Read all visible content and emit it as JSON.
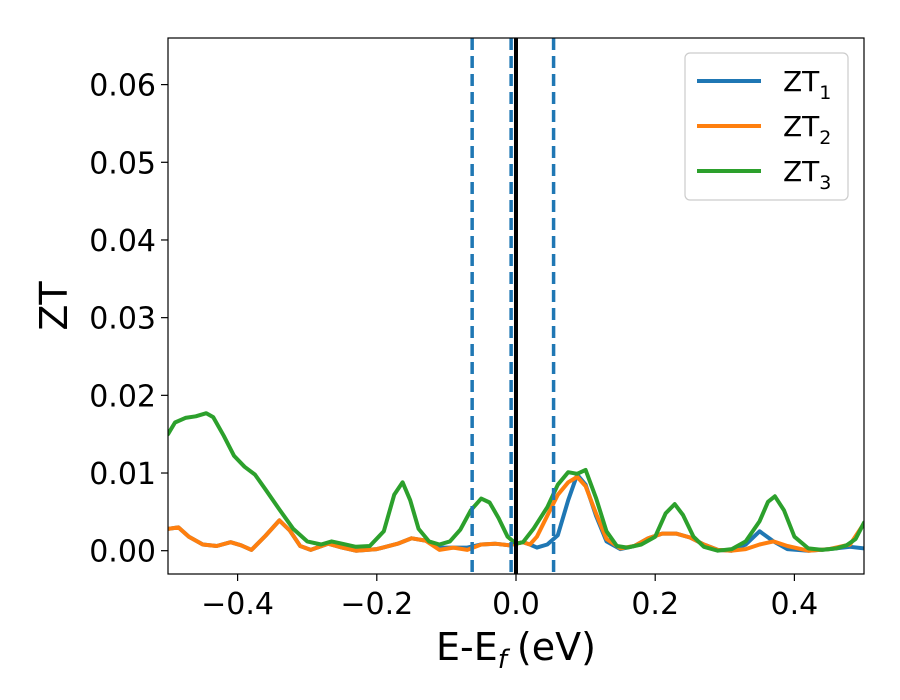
{
  "chart_data": {
    "type": "line",
    "xlabel": "E-E",
    "xlabel_sub": "f",
    "xlabel_unit": "(eV)",
    "ylabel": "ZT",
    "xlim": [
      -0.5,
      0.5
    ],
    "ylim": [
      -0.003,
      0.066
    ],
    "x_ticks": [
      -0.4,
      -0.2,
      0.0,
      0.2,
      0.4
    ],
    "x_tick_labels": [
      "−0.4",
      "−0.2",
      "0.0",
      "0.2",
      "0.4"
    ],
    "y_ticks": [
      0.0,
      0.01,
      0.02,
      0.03,
      0.04,
      0.05,
      0.06
    ],
    "y_tick_labels": [
      "0.00",
      "0.01",
      "0.02",
      "0.03",
      "0.04",
      "0.05",
      "0.06"
    ],
    "grid": false,
    "legend_position": "top-right",
    "vlines": [
      {
        "x": -0.063,
        "style": "dashed",
        "color": "#1f77b4"
      },
      {
        "x": -0.007,
        "style": "dashed",
        "color": "#1f77b4"
      },
      {
        "x": 0.0,
        "style": "solid",
        "color": "#000000"
      },
      {
        "x": 0.054,
        "style": "dashed",
        "color": "#1f77b4"
      }
    ],
    "series": [
      {
        "name": "ZT",
        "subscript": "1",
        "color": "#1f77b4",
        "points": [
          [
            -0.5,
            0.0028
          ],
          [
            -0.485,
            0.003
          ],
          [
            -0.47,
            0.0018
          ],
          [
            -0.45,
            0.0008
          ],
          [
            -0.43,
            0.0006
          ],
          [
            -0.41,
            0.0011
          ],
          [
            -0.395,
            0.0007
          ],
          [
            -0.38,
            0.0001
          ],
          [
            -0.36,
            0.0019
          ],
          [
            -0.34,
            0.0039
          ],
          [
            -0.325,
            0.0026
          ],
          [
            -0.31,
            0.0006
          ],
          [
            -0.295,
            0.0001
          ],
          [
            -0.27,
            0.0009
          ],
          [
            -0.25,
            0.0004
          ],
          [
            -0.23,
            0.0
          ],
          [
            -0.2,
            0.0002
          ],
          [
            -0.17,
            0.0009
          ],
          [
            -0.15,
            0.0016
          ],
          [
            -0.13,
            0.0013
          ],
          [
            -0.11,
            0.0004
          ],
          [
            -0.09,
            0.0004
          ],
          [
            -0.07,
            0.0004
          ],
          [
            -0.05,
            0.0008
          ],
          [
            -0.03,
            0.0009
          ],
          [
            -0.01,
            0.0007
          ],
          [
            0.0,
            0.0009
          ],
          [
            0.01,
            0.0011
          ],
          [
            0.02,
            0.0008
          ],
          [
            0.03,
            0.0004
          ],
          [
            0.045,
            0.0008
          ],
          [
            0.06,
            0.002
          ],
          [
            0.075,
            0.0065
          ],
          [
            0.088,
            0.0098
          ],
          [
            0.1,
            0.0085
          ],
          [
            0.115,
            0.0045
          ],
          [
            0.13,
            0.0012
          ],
          [
            0.15,
            0.0002
          ],
          [
            0.17,
            0.0006
          ],
          [
            0.19,
            0.0016
          ],
          [
            0.21,
            0.0022
          ],
          [
            0.23,
            0.0022
          ],
          [
            0.25,
            0.0017
          ],
          [
            0.27,
            0.0008
          ],
          [
            0.29,
            0.0001
          ],
          [
            0.31,
            0.0
          ],
          [
            0.33,
            0.0008
          ],
          [
            0.35,
            0.0025
          ],
          [
            0.37,
            0.0012
          ],
          [
            0.39,
            0.0002
          ],
          [
            0.42,
            0.0
          ],
          [
            0.45,
            0.0002
          ],
          [
            0.48,
            0.0005
          ],
          [
            0.5,
            0.0003
          ]
        ]
      },
      {
        "name": "ZT",
        "subscript": "2",
        "color": "#ff7f0e",
        "points": [
          [
            -0.5,
            0.0028
          ],
          [
            -0.485,
            0.003
          ],
          [
            -0.47,
            0.0018
          ],
          [
            -0.45,
            0.0008
          ],
          [
            -0.43,
            0.0006
          ],
          [
            -0.41,
            0.0011
          ],
          [
            -0.395,
            0.0007
          ],
          [
            -0.38,
            0.0001
          ],
          [
            -0.36,
            0.0019
          ],
          [
            -0.34,
            0.0039
          ],
          [
            -0.325,
            0.0026
          ],
          [
            -0.31,
            0.0006
          ],
          [
            -0.295,
            0.0001
          ],
          [
            -0.27,
            0.0009
          ],
          [
            -0.25,
            0.0004
          ],
          [
            -0.23,
            0.0
          ],
          [
            -0.2,
            0.0002
          ],
          [
            -0.17,
            0.0009
          ],
          [
            -0.15,
            0.0016
          ],
          [
            -0.13,
            0.0013
          ],
          [
            -0.11,
            0.0001
          ],
          [
            -0.09,
            0.0004
          ],
          [
            -0.07,
            0.0001
          ],
          [
            -0.05,
            0.0008
          ],
          [
            -0.03,
            0.0009
          ],
          [
            -0.01,
            0.0007
          ],
          [
            0.0,
            0.0009
          ],
          [
            0.01,
            0.0011
          ],
          [
            0.02,
            0.0008
          ],
          [
            0.03,
            0.0018
          ],
          [
            0.045,
            0.0045
          ],
          [
            0.06,
            0.0072
          ],
          [
            0.075,
            0.0088
          ],
          [
            0.088,
            0.0095
          ],
          [
            0.1,
            0.0083
          ],
          [
            0.115,
            0.0048
          ],
          [
            0.13,
            0.0015
          ],
          [
            0.15,
            0.0003
          ],
          [
            0.17,
            0.0006
          ],
          [
            0.19,
            0.0016
          ],
          [
            0.21,
            0.0022
          ],
          [
            0.23,
            0.0022
          ],
          [
            0.25,
            0.0017
          ],
          [
            0.27,
            0.0008
          ],
          [
            0.29,
            0.0001
          ],
          [
            0.31,
            0.0
          ],
          [
            0.33,
            0.0002
          ],
          [
            0.35,
            0.0008
          ],
          [
            0.37,
            0.0012
          ],
          [
            0.39,
            0.0006
          ],
          [
            0.42,
            0.0
          ],
          [
            0.45,
            0.0002
          ],
          [
            0.48,
            0.0008
          ],
          [
            0.5,
            0.0035
          ]
        ]
      },
      {
        "name": "ZT",
        "subscript": "3",
        "color": "#2ca02c",
        "points": [
          [
            -0.5,
            0.015
          ],
          [
            -0.49,
            0.0165
          ],
          [
            -0.475,
            0.0171
          ],
          [
            -0.46,
            0.0173
          ],
          [
            -0.445,
            0.0177
          ],
          [
            -0.435,
            0.0172
          ],
          [
            -0.42,
            0.0148
          ],
          [
            -0.405,
            0.0122
          ],
          [
            -0.39,
            0.0108
          ],
          [
            -0.375,
            0.0098
          ],
          [
            -0.36,
            0.0079
          ],
          [
            -0.34,
            0.0053
          ],
          [
            -0.32,
            0.0028
          ],
          [
            -0.3,
            0.0012
          ],
          [
            -0.28,
            0.0008
          ],
          [
            -0.265,
            0.0012
          ],
          [
            -0.25,
            0.0009
          ],
          [
            -0.23,
            0.0005
          ],
          [
            -0.21,
            0.0006
          ],
          [
            -0.19,
            0.0025
          ],
          [
            -0.175,
            0.0072
          ],
          [
            -0.163,
            0.0088
          ],
          [
            -0.152,
            0.0065
          ],
          [
            -0.14,
            0.0028
          ],
          [
            -0.125,
            0.0012
          ],
          [
            -0.11,
            0.0008
          ],
          [
            -0.095,
            0.0012
          ],
          [
            -0.08,
            0.0027
          ],
          [
            -0.065,
            0.0052
          ],
          [
            -0.05,
            0.0067
          ],
          [
            -0.038,
            0.0062
          ],
          [
            -0.025,
            0.0042
          ],
          [
            -0.012,
            0.0018
          ],
          [
            0.0,
            0.0009
          ],
          [
            0.01,
            0.0011
          ],
          [
            0.025,
            0.0028
          ],
          [
            0.045,
            0.0056
          ],
          [
            0.06,
            0.0085
          ],
          [
            0.075,
            0.0101
          ],
          [
            0.088,
            0.0099
          ],
          [
            0.1,
            0.0104
          ],
          [
            0.115,
            0.0068
          ],
          [
            0.13,
            0.0025
          ],
          [
            0.145,
            0.0006
          ],
          [
            0.16,
            0.0004
          ],
          [
            0.18,
            0.0008
          ],
          [
            0.2,
            0.0018
          ],
          [
            0.215,
            0.0048
          ],
          [
            0.228,
            0.006
          ],
          [
            0.24,
            0.0046
          ],
          [
            0.255,
            0.0018
          ],
          [
            0.27,
            0.0005
          ],
          [
            0.29,
            0.0
          ],
          [
            0.31,
            0.0002
          ],
          [
            0.33,
            0.0012
          ],
          [
            0.35,
            0.0038
          ],
          [
            0.362,
            0.0063
          ],
          [
            0.372,
            0.007
          ],
          [
            0.385,
            0.0052
          ],
          [
            0.4,
            0.0018
          ],
          [
            0.42,
            0.0003
          ],
          [
            0.44,
            0.0001
          ],
          [
            0.46,
            0.0003
          ],
          [
            0.475,
            0.0007
          ],
          [
            0.488,
            0.0015
          ],
          [
            0.5,
            0.0036
          ]
        ]
      }
    ]
  }
}
